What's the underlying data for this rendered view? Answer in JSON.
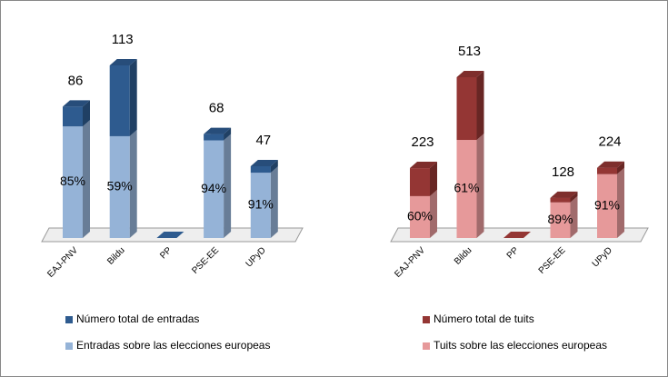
{
  "chart_data": [
    {
      "type": "bar",
      "stacked": true,
      "categories": [
        "EAJ-PNV",
        "Bildu",
        "PP",
        "PSE-EE",
        "UPyD"
      ],
      "series": [
        {
          "name": "Número total de entradas",
          "color": "#2e5b8f",
          "values": [
            86,
            113,
            null,
            68,
            47
          ]
        },
        {
          "name": "Entradas sobre las elecciones europeas",
          "color": "#95b3d7",
          "values": [
            85,
            59,
            null,
            94,
            91
          ],
          "value_labels": [
            "85%",
            "59%",
            null,
            "94%",
            "91%"
          ]
        }
      ]
    },
    {
      "type": "bar",
      "stacked": true,
      "categories": [
        "EAJ-PNV",
        "Bildu",
        "PP",
        "PSE-EE",
        "UPyD"
      ],
      "series": [
        {
          "name": "Número total de tuits",
          "color": "#943634",
          "values": [
            223,
            513,
            null,
            128,
            224
          ]
        },
        {
          "name": "Tuits sobre las elecciones europeas",
          "color": "#e6999a",
          "values": [
            60,
            61,
            null,
            89,
            91
          ],
          "value_labels": [
            "60%",
            "61%",
            null,
            "89%",
            "91%"
          ]
        }
      ]
    }
  ]
}
